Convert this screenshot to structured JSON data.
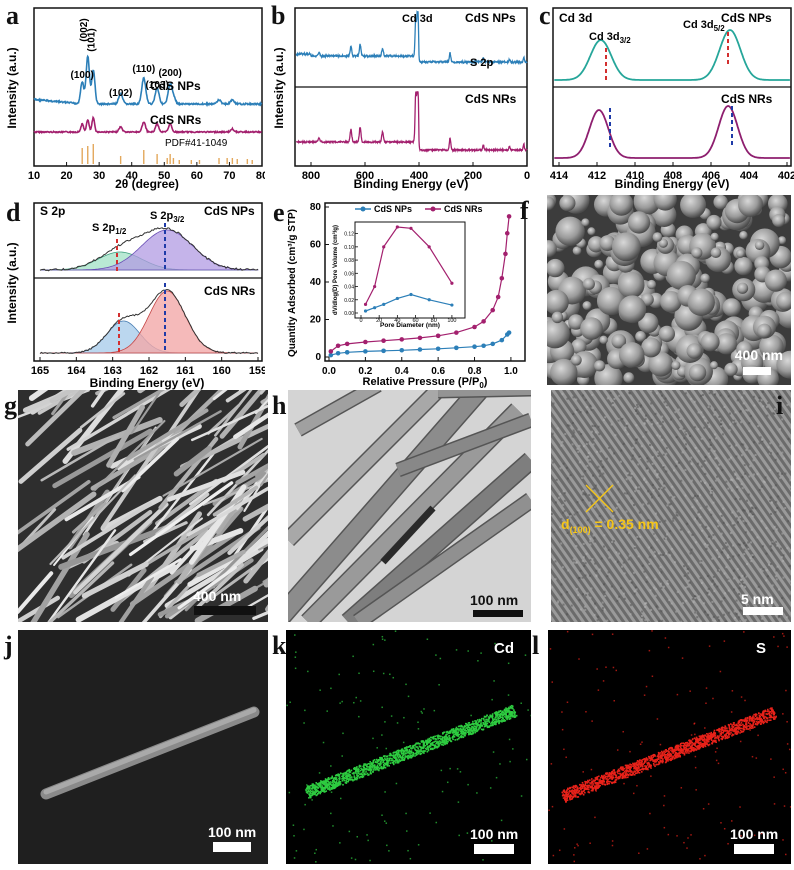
{
  "panels": {
    "a": {
      "label": "a",
      "ylabel": "Intensity (a.u.)",
      "xlabel": "2θ (degree)",
      "xticks": [
        "10",
        "20",
        "30",
        "40",
        "50",
        "60",
        "70",
        "80"
      ],
      "series_np": "CdS NPs",
      "series_nr": "CdS NRs",
      "pdf": "PDF#41-1049",
      "peaks": [
        "(100)",
        "(002)",
        "(101)",
        "(102)",
        "(110)",
        "(103)",
        "(200)"
      ],
      "colors": {
        "np": "#2c7fb8",
        "nr": "#a3206e",
        "pdf": "#e3a85c"
      }
    },
    "b": {
      "label": "b",
      "ylabel": "Intensity (a.u.)",
      "xlabel": "Binding Energy (eV)",
      "xticks": [
        "800",
        "600",
        "400",
        "200",
        "0"
      ],
      "series_np": "CdS NPs",
      "series_nr": "CdS NRs",
      "ann_cd": "Cd 3d",
      "ann_s": "S 2p"
    },
    "c": {
      "label": "c",
      "title": "Cd 3d",
      "xlabel": "Binding Energy (eV)",
      "xticks": [
        "414",
        "412",
        "410",
        "408",
        "406",
        "404",
        "402"
      ],
      "series_np": "CdS NPs",
      "series_nr": "CdS NRs",
      "peak1": "Cd 3d",
      "peak1_sub": "3/2",
      "peak2": "Cd 3d",
      "peak2_sub": "5/2"
    },
    "d": {
      "label": "d",
      "title": "S 2p",
      "ylabel": "Intensity (a.u.)",
      "xlabel": "Binding Energy (eV)",
      "xticks": [
        "165",
        "164",
        "163",
        "162",
        "161",
        "160",
        "159"
      ],
      "series_np": "CdS NPs",
      "series_nr": "CdS NRs",
      "peak1": "S 2p",
      "peak1_sub": "1/2",
      "peak2": "S 2p",
      "peak2_sub": "3/2"
    },
    "e": {
      "label": "e",
      "ylabel": "Quantity Adsorbed (cm³/g STP)",
      "xlabel": "Relative Pressure (P/P",
      "xlabel_sub": "0",
      "xlabel_end": ")",
      "xticks": [
        "0.0",
        "0.2",
        "0.4",
        "0.6",
        "0.8",
        "1.0"
      ],
      "yticks": [
        "0",
        "20",
        "40",
        "60",
        "80"
      ],
      "legend": [
        "CdS NPs",
        "CdS NRs"
      ],
      "inset_ylabel": "dV/dlog(D) Pore Volume (cm³/g)",
      "inset_xlabel": "Pore Diameter (nm)",
      "inset_xticks": [
        "0",
        "20",
        "40",
        "60",
        "80",
        "100"
      ],
      "inset_yticks": [
        "0.00",
        "0.02",
        "0.04",
        "0.06",
        "0.08",
        "0.10",
        "0.12"
      ]
    },
    "f": {
      "label": "f",
      "scale": "400 nm"
    },
    "g": {
      "label": "g",
      "scale": "400 nm"
    },
    "h": {
      "label": "h",
      "scale": "100 nm"
    },
    "i": {
      "label": "i",
      "scale": "5 nm",
      "dspace": "d",
      "dspace_sub": "(100)",
      "dspace_val": " = 0.35 nm"
    },
    "j": {
      "label": "j",
      "scale": "100 nm"
    },
    "k": {
      "label": "k",
      "scale": "100 nm",
      "element": "Cd",
      "color": "#2ecc40"
    },
    "l": {
      "label": "l",
      "scale": "100 nm",
      "element": "S",
      "color": "#e8221a"
    }
  },
  "chart_data": [
    {
      "type": "line",
      "panel": "e",
      "xlabel": "Relative Pressure (P/P0)",
      "ylabel": "Quantity Adsorbed (cm³/g STP)",
      "xlim": [
        0,
        1.05
      ],
      "ylim": [
        0,
        80
      ],
      "series": [
        {
          "name": "CdS NPs",
          "x": [
            0.01,
            0.05,
            0.1,
            0.2,
            0.3,
            0.4,
            0.5,
            0.6,
            0.7,
            0.8,
            0.85,
            0.9,
            0.95,
            0.98,
            0.99
          ],
          "y": [
            1,
            2,
            2.5,
            3,
            3.3,
            3.6,
            4,
            4.4,
            4.9,
            5.5,
            6,
            7,
            9,
            12,
            13
          ]
        },
        {
          "name": "CdS NRs",
          "x": [
            0.01,
            0.05,
            0.1,
            0.2,
            0.3,
            0.4,
            0.5,
            0.6,
            0.7,
            0.8,
            0.85,
            0.9,
            0.93,
            0.95,
            0.97,
            0.98,
            0.99
          ],
          "y": [
            3,
            6,
            7,
            8,
            8.7,
            9.4,
            10.2,
            11.3,
            13,
            16,
            19,
            25,
            32,
            42,
            55,
            66,
            75
          ]
        }
      ]
    },
    {
      "type": "line",
      "panel": "e-inset",
      "xlabel": "Pore Diameter (nm)",
      "ylabel": "dV/dlog(D) Pore Volume (cm³/g)",
      "xlim": [
        0,
        110
      ],
      "ylim": [
        0,
        0.13
      ],
      "series": [
        {
          "name": "CdS NPs",
          "x": [
            5,
            15,
            25,
            40,
            55,
            75,
            100
          ],
          "y": [
            0.003,
            0.008,
            0.013,
            0.022,
            0.028,
            0.02,
            0.012
          ]
        },
        {
          "name": "CdS NRs",
          "x": [
            5,
            15,
            25,
            40,
            55,
            75,
            100
          ],
          "y": [
            0.013,
            0.04,
            0.1,
            0.13,
            0.128,
            0.1,
            0.045
          ]
        }
      ]
    }
  ]
}
